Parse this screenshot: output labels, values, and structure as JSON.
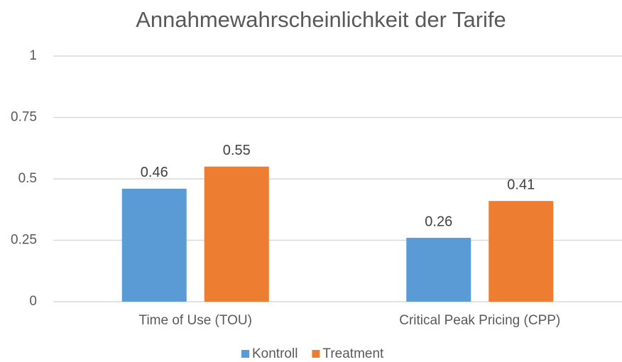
{
  "chart_data": {
    "type": "bar",
    "title": "Annahmewahrscheinlichkeit der Tarife",
    "categories": [
      "Time of Use (TOU)",
      "Critical Peak Pricing (CPP)"
    ],
    "series": [
      {
        "name": "Kontroll",
        "color": "#5b9bd5",
        "values": [
          0.46,
          0.26
        ]
      },
      {
        "name": "Treatment",
        "color": "#ed7d31",
        "values": [
          0.55,
          0.41
        ]
      }
    ],
    "ylim": [
      0,
      1
    ],
    "yticks": [
      0,
      0.25,
      0.5,
      0.75,
      1
    ],
    "grid": true,
    "legend": "bottom"
  }
}
